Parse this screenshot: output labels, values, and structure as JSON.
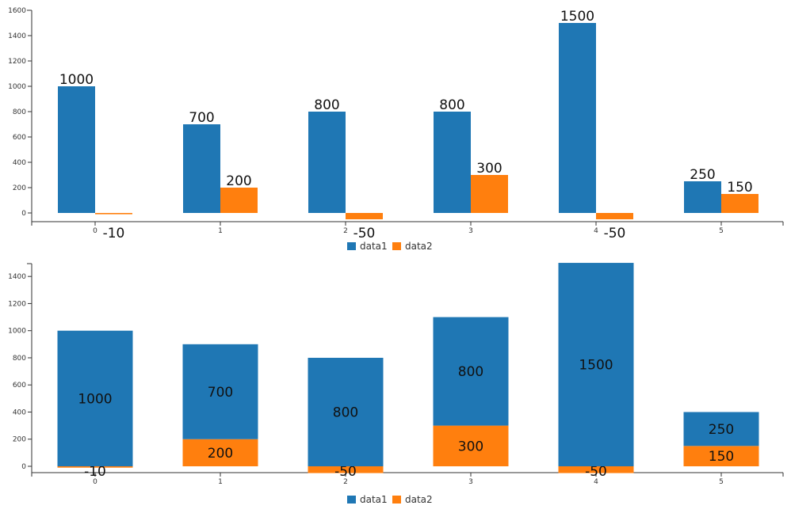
{
  "chart_data": [
    {
      "type": "bar",
      "mode": "grouped",
      "categories": [
        "0",
        "1",
        "2",
        "3",
        "4",
        "5"
      ],
      "series": [
        {
          "name": "data1",
          "values": [
            1000,
            700,
            800,
            800,
            1500,
            250
          ]
        },
        {
          "name": "data2",
          "values": [
            -10,
            200,
            -50,
            300,
            -50,
            150
          ]
        }
      ],
      "y_ticks": [
        "0",
        "200",
        "400",
        "600",
        "800",
        "1000",
        "1200",
        "1400",
        "1600"
      ],
      "ylim": [
        -50,
        1600
      ],
      "grid": false,
      "legend": "bottom-center"
    },
    {
      "type": "bar",
      "mode": "stacked",
      "categories": [
        "0",
        "1",
        "2",
        "3",
        "4",
        "5"
      ],
      "series": [
        {
          "name": "data1",
          "values": [
            1000,
            700,
            800,
            800,
            1500,
            250
          ]
        },
        {
          "name": "data2",
          "values": [
            -10,
            200,
            -50,
            300,
            -50,
            150
          ]
        }
      ],
      "y_ticks": [
        "0",
        "200",
        "400",
        "600",
        "800",
        "1000",
        "1200",
        "1400"
      ],
      "ylim": [
        -50,
        1500
      ],
      "grid": false,
      "legend": "bottom-center"
    }
  ],
  "colors": {
    "data1": "#1f77b4",
    "data2": "#ff7f0e"
  }
}
